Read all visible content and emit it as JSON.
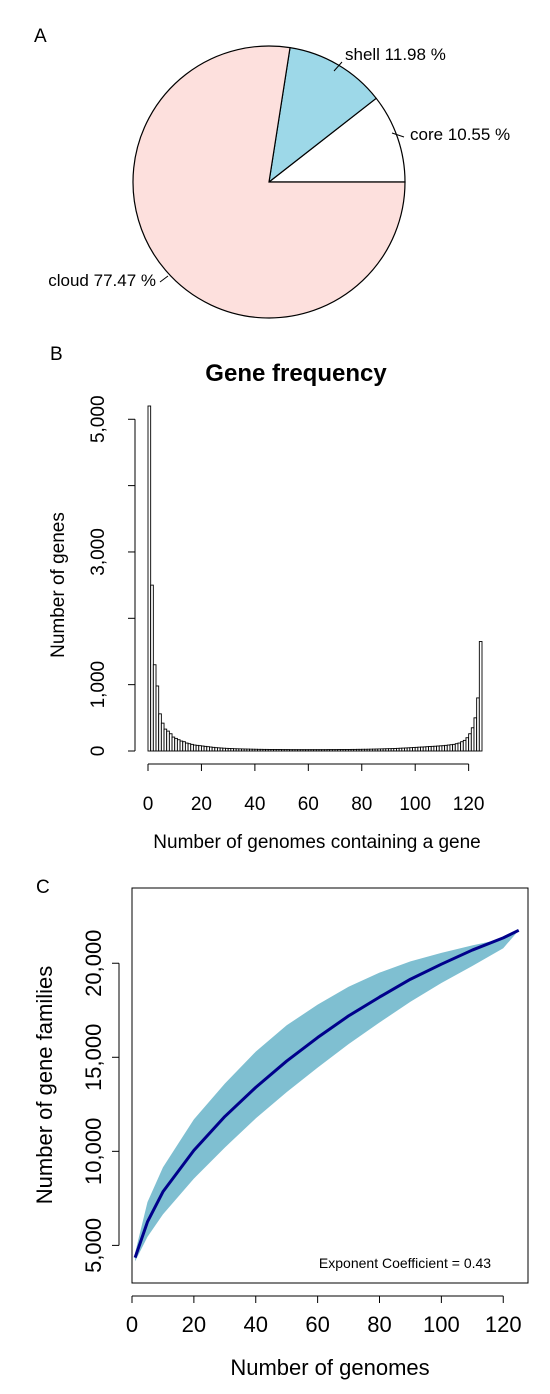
{
  "panels": {
    "a": {
      "label": "A"
    },
    "b": {
      "label": "B"
    },
    "c": {
      "label": "C"
    }
  },
  "chart_data": [
    {
      "type": "pie",
      "slices": [
        {
          "name": "core",
          "value": 10.55,
          "label": "core 10.55 %",
          "color": "#ffffff"
        },
        {
          "name": "shell",
          "value": 11.98,
          "label": "shell 11.98 %",
          "color": "#9dd8e8"
        },
        {
          "name": "cloud",
          "value": 77.47,
          "label": "cloud 77.47 %",
          "color": "#fde0dd"
        }
      ],
      "start": "3 o'clock, counter-clockwise"
    },
    {
      "type": "bar",
      "title": "Gene frequency",
      "xlabel": "Number of genomes containing a gene",
      "ylabel": "Number of genes",
      "xticks": [
        "0",
        "20",
        "40",
        "60",
        "80",
        "100",
        "120"
      ],
      "yticks": [
        "0",
        "1,000",
        "3,000",
        "5,000"
      ],
      "xlim": [
        0,
        125
      ],
      "ylim": [
        0,
        5200
      ],
      "x": [
        1,
        2,
        3,
        4,
        5,
        6,
        7,
        8,
        9,
        10,
        11,
        12,
        13,
        14,
        15,
        16,
        17,
        18,
        19,
        20,
        21,
        22,
        23,
        24,
        25,
        26,
        27,
        28,
        29,
        30,
        31,
        32,
        33,
        34,
        35,
        36,
        37,
        38,
        39,
        40,
        41,
        42,
        43,
        44,
        45,
        46,
        47,
        48,
        49,
        50,
        51,
        52,
        53,
        54,
        55,
        56,
        57,
        58,
        59,
        60,
        61,
        62,
        63,
        64,
        65,
        66,
        67,
        68,
        69,
        70,
        71,
        72,
        73,
        74,
        75,
        76,
        77,
        78,
        79,
        80,
        81,
        82,
        83,
        84,
        85,
        86,
        87,
        88,
        89,
        90,
        91,
        92,
        93,
        94,
        95,
        96,
        97,
        98,
        99,
        100,
        101,
        102,
        103,
        104,
        105,
        106,
        107,
        108,
        109,
        110,
        111,
        112,
        113,
        114,
        115,
        116,
        117,
        118,
        119,
        120,
        121,
        122,
        123,
        124,
        125
      ],
      "values": [
        5200,
        2500,
        1300,
        980,
        560,
        420,
        330,
        300,
        260,
        210,
        190,
        170,
        150,
        140,
        120,
        110,
        100,
        90,
        85,
        80,
        75,
        70,
        65,
        60,
        55,
        50,
        48,
        45,
        42,
        40,
        38,
        36,
        34,
        33,
        32,
        31,
        30,
        29,
        28,
        27,
        26,
        25,
        25,
        24,
        24,
        23,
        23,
        22,
        22,
        22,
        21,
        21,
        21,
        20,
        20,
        20,
        20,
        20,
        20,
        20,
        20,
        20,
        20,
        20,
        20,
        20,
        20,
        21,
        21,
        21,
        21,
        22,
        22,
        22,
        23,
        23,
        24,
        24,
        25,
        25,
        26,
        26,
        27,
        28,
        29,
        30,
        31,
        32,
        33,
        34,
        35,
        36,
        38,
        40,
        42,
        44,
        46,
        48,
        50,
        52,
        55,
        58,
        60,
        62,
        65,
        68,
        70,
        72,
        75,
        78,
        80,
        85,
        90,
        95,
        100,
        110,
        120,
        140,
        160,
        200,
        260,
        350,
        500,
        800,
        1650
      ],
      "color": "#ffffff",
      "edge": "#000000",
      "grid": false
    },
    {
      "type": "area",
      "xlabel": "Number of genomes",
      "ylabel": "Number of gene families",
      "xticks": [
        "0",
        "20",
        "40",
        "60",
        "80",
        "100",
        "120"
      ],
      "yticks": [
        "5,000",
        "10,000",
        "15,000",
        "20,000"
      ],
      "xlim": [
        0,
        128
      ],
      "ylim": [
        3000,
        24000
      ],
      "mean": {
        "x": [
          1,
          5,
          10,
          20,
          30,
          40,
          50,
          60,
          70,
          80,
          90,
          100,
          110,
          120,
          125
        ],
        "y": [
          4350,
          6250,
          7850,
          10050,
          11850,
          13400,
          14800,
          16050,
          17200,
          18200,
          19150,
          19950,
          20700,
          21350,
          21750
        ],
        "color": "#00008b"
      },
      "band": {
        "x": [
          1,
          5,
          10,
          20,
          30,
          40,
          50,
          60,
          70,
          80,
          90,
          100,
          110,
          120,
          125
        ],
        "upper": [
          4600,
          7300,
          9150,
          11700,
          13600,
          15300,
          16700,
          17800,
          18750,
          19500,
          20100,
          20550,
          20950,
          21300,
          21750
        ],
        "lower": [
          4150,
          5450,
          6650,
          8550,
          10200,
          11750,
          13150,
          14450,
          15700,
          16850,
          17950,
          18950,
          19850,
          20800,
          21750
        ],
        "color": "#7fbfd1"
      },
      "annotation": "Exponent Coefficient = 0.43",
      "grid": false
    }
  ]
}
